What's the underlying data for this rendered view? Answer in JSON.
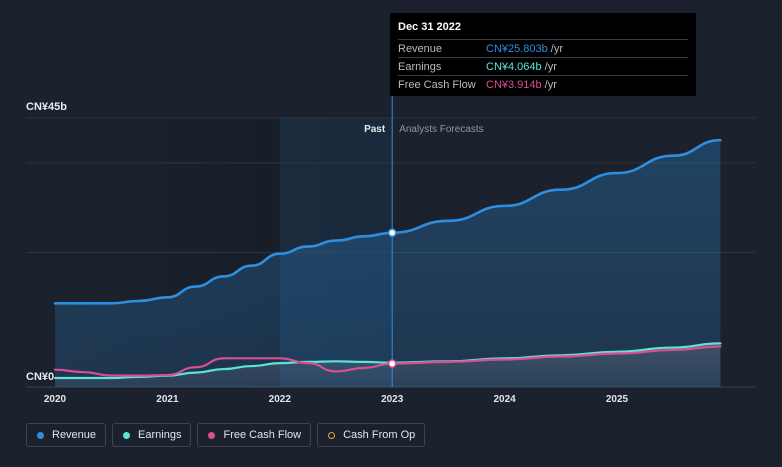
{
  "chart_data": {
    "type": "area",
    "y_top_label": "CN¥45b",
    "y_bottom_label": "CN¥0",
    "ylim": [
      0,
      45
    ],
    "x_ticks": [
      "2020",
      "2021",
      "2022",
      "2023",
      "2024",
      "2025"
    ],
    "divider_label_past": "Past",
    "divider_label_forecast": "Analysts Forecasts",
    "divider_x": 2023.0,
    "series": [
      {
        "name": "Revenue",
        "color": "#2e8fe0",
        "x": [
          2020.0,
          2020.5,
          2020.75,
          2021.0,
          2021.25,
          2021.5,
          2021.75,
          2022.0,
          2022.25,
          2022.5,
          2022.75,
          2023.0,
          2023.5,
          2024.0,
          2024.5,
          2025.0,
          2025.5,
          2025.92
        ],
        "y": [
          14.0,
          14.0,
          14.4,
          15.0,
          16.8,
          18.5,
          20.3,
          22.3,
          23.5,
          24.5,
          25.2,
          25.8,
          27.8,
          30.3,
          33.0,
          35.8,
          38.7,
          41.3
        ]
      },
      {
        "name": "Earnings",
        "color": "#5fe3d7",
        "x": [
          2020.0,
          2020.5,
          2020.75,
          2021.0,
          2021.25,
          2021.5,
          2021.75,
          2022.0,
          2022.25,
          2022.5,
          2022.75,
          2023.0,
          2023.5,
          2024.0,
          2024.5,
          2025.0,
          2025.5,
          2025.92
        ],
        "y": [
          1.5,
          1.5,
          1.7,
          1.9,
          2.4,
          3.0,
          3.5,
          4.0,
          4.2,
          4.3,
          4.2,
          4.06,
          4.3,
          4.8,
          5.3,
          5.9,
          6.6,
          7.3
        ]
      },
      {
        "name": "Free Cash Flow",
        "color": "#d94f8f",
        "x": [
          2020.0,
          2020.25,
          2020.5,
          2020.75,
          2021.0,
          2021.25,
          2021.5,
          2021.75,
          2022.0,
          2022.25,
          2022.5,
          2022.75,
          2023.0,
          2023.5,
          2024.0,
          2024.5,
          2025.0,
          2025.5,
          2025.92
        ],
        "y": [
          2.9,
          2.5,
          1.9,
          1.9,
          2.0,
          3.3,
          4.8,
          4.8,
          4.8,
          4.0,
          2.6,
          3.2,
          3.914,
          4.2,
          4.6,
          5.1,
          5.6,
          6.2,
          6.8
        ]
      },
      {
        "name": "Cash From Op",
        "color": "#e8a13a",
        "x": [],
        "y": []
      }
    ],
    "tooltip": {
      "date": "Dec 31 2022",
      "rows": [
        {
          "name": "Revenue",
          "value": "CN¥25.803b",
          "unit": "/yr",
          "color": "#2e8fe0"
        },
        {
          "name": "Earnings",
          "value": "CN¥4.064b",
          "unit": "/yr",
          "color": "#5fe3d7"
        },
        {
          "name": "Free Cash Flow",
          "value": "CN¥3.914b",
          "unit": "/yr",
          "color": "#d94f8f"
        }
      ]
    },
    "legend": [
      {
        "label": "Revenue",
        "color": "#2e8fe0",
        "hollow": false
      },
      {
        "label": "Earnings",
        "color": "#5fe3d7",
        "hollow": false
      },
      {
        "label": "Free Cash Flow",
        "color": "#d94f8f",
        "hollow": false
      },
      {
        "label": "Cash From Op",
        "color": "#e8a13a",
        "hollow": true
      }
    ]
  }
}
